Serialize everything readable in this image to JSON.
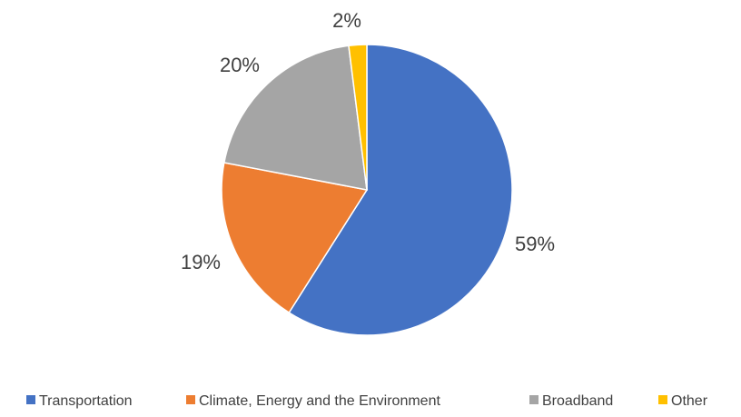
{
  "chart_data": {
    "type": "pie",
    "title": "",
    "categories": [
      "Transportation",
      "Climate, Energy and the Environment",
      "Broadband",
      "Other"
    ],
    "values": [
      59,
      19,
      20,
      2
    ],
    "data_labels": [
      "59%",
      "19%",
      "20%",
      "2%"
    ],
    "colors": [
      "#4472C4",
      "#ED7D31",
      "#A5A5A5",
      "#FFC000"
    ],
    "legend_position": "bottom",
    "start_angle": "top, clockwise"
  }
}
